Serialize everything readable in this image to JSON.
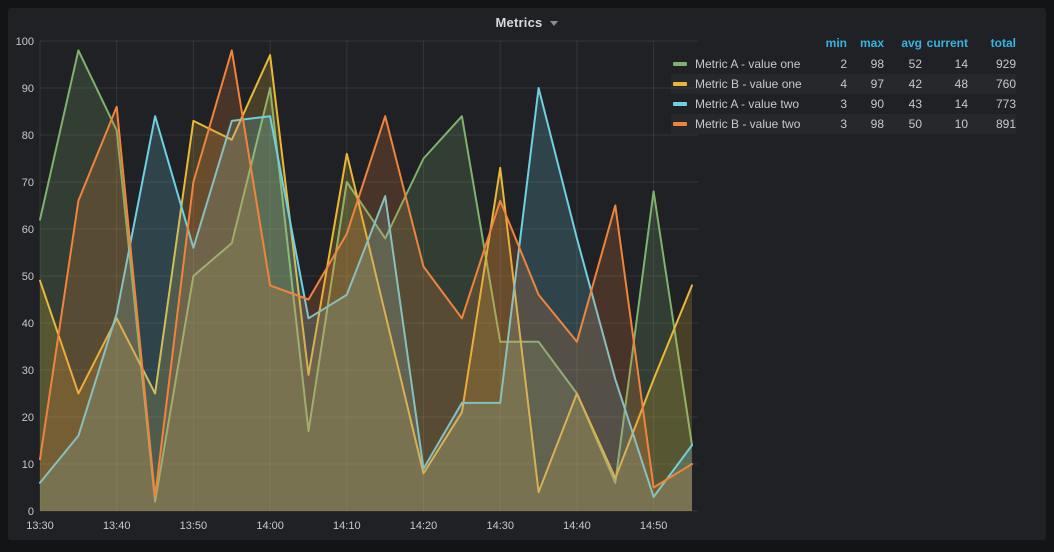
{
  "panel": {
    "title": "Metrics"
  },
  "legend": {
    "headers": [
      "min",
      "max",
      "avg",
      "current",
      "total"
    ],
    "rows": [
      {
        "label": "Metric A - value one",
        "color": "#7eb26d",
        "min": 2,
        "max": 98,
        "avg": 52,
        "current": 14,
        "total": 929
      },
      {
        "label": "Metric B - value one",
        "color": "#eab839",
        "min": 4,
        "max": 97,
        "avg": 42,
        "current": 48,
        "total": 760
      },
      {
        "label": "Metric A - value two",
        "color": "#6ed0e0",
        "min": 3,
        "max": 90,
        "avg": 43,
        "current": 14,
        "total": 773
      },
      {
        "label": "Metric B - value two",
        "color": "#ef843c",
        "min": 3,
        "max": 98,
        "avg": 50,
        "current": 10,
        "total": 891
      }
    ]
  },
  "chart_data": {
    "type": "line",
    "title": "Metrics",
    "x": [
      "13:30",
      "13:35",
      "13:40",
      "13:45",
      "13:50",
      "13:55",
      "14:00",
      "14:05",
      "14:10",
      "14:15",
      "14:20",
      "14:25",
      "14:30",
      "14:35",
      "14:40",
      "14:45",
      "14:50",
      "14:55"
    ],
    "x_tick_labels": [
      "13:30",
      "13:40",
      "13:50",
      "14:00",
      "14:10",
      "14:20",
      "14:30",
      "14:40",
      "14:50"
    ],
    "x_tick_every": 2,
    "y_ticks": [
      0,
      10,
      20,
      30,
      40,
      50,
      60,
      70,
      80,
      90,
      100
    ],
    "ylim": [
      0,
      100
    ],
    "grid": true,
    "legend_position": "right-table",
    "fill_opacity": 0.2,
    "line_width": 2,
    "series": [
      {
        "name": "Metric A - value one",
        "color": "#7eb26d",
        "values": [
          62,
          98,
          81,
          2,
          50,
          57,
          90,
          17,
          70,
          58,
          75,
          84,
          36,
          36,
          25,
          6,
          68,
          14
        ]
      },
      {
        "name": "Metric B - value one",
        "color": "#eab839",
        "values": [
          49,
          25,
          41,
          25,
          83,
          79,
          97,
          29,
          76,
          42,
          8,
          21,
          73,
          4,
          25,
          7,
          28,
          48
        ]
      },
      {
        "name": "Metric A - value two",
        "color": "#6ed0e0",
        "values": [
          6,
          16,
          42,
          84,
          56,
          83,
          84,
          41,
          46,
          67,
          9,
          23,
          23,
          90,
          58,
          28,
          3,
          14
        ]
      },
      {
        "name": "Metric B - value two",
        "color": "#ef843c",
        "values": [
          11,
          66,
          86,
          3,
          70,
          98,
          48,
          45,
          59,
          84,
          52,
          41,
          66,
          46,
          36,
          65,
          5,
          10
        ]
      }
    ]
  },
  "colors": {
    "page_bg": "#131416",
    "panel_bg": "#202125",
    "grid": "rgba(255,255,255,0.09)",
    "tick_text": "#c8c9cb",
    "legend_header": "#33b5e5",
    "legend_text": "#c7c8ca",
    "title_text": "#d8d9da"
  }
}
